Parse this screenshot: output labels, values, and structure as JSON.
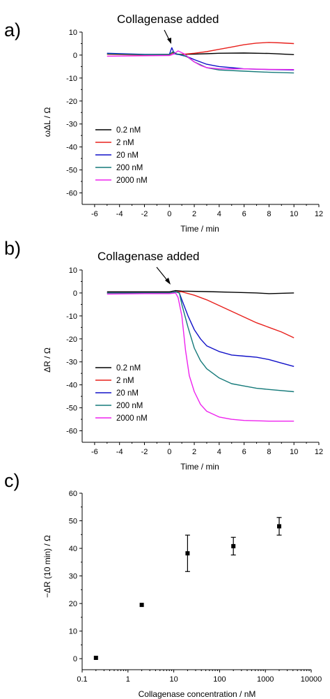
{
  "chart_data": [
    {
      "panel": "a)",
      "type": "line",
      "annotation": "Collagenase added",
      "annotation_x": 0,
      "ylabel": "ωΔL / Ω",
      "xlabel": "Time / min",
      "xlim": [
        -7,
        12
      ],
      "ylim": [
        -65,
        10
      ],
      "xticks": [
        -6,
        -4,
        -2,
        0,
        2,
        4,
        6,
        8,
        10,
        12
      ],
      "yticks": [
        10,
        0,
        -10,
        -20,
        -30,
        -40,
        -50,
        -60
      ],
      "legend_position": "bottom-left",
      "series": [
        {
          "name": "0.2 nM",
          "color": "#000000",
          "x": [
            -5,
            -2,
            0,
            0.3,
            0.6,
            1,
            2,
            3,
            4,
            6,
            8,
            10
          ],
          "y": [
            0.5,
            0.2,
            0.2,
            1.0,
            0.3,
            0.3,
            0.4,
            0.6,
            0.8,
            0.9,
            0.7,
            0.2
          ]
        },
        {
          "name": "2 nM",
          "color": "#e8201c",
          "x": [
            -5,
            -2,
            0,
            0.3,
            0.6,
            1,
            2,
            3,
            4,
            5,
            6,
            7,
            8,
            9,
            10
          ],
          "y": [
            0.3,
            0,
            0.1,
            1.2,
            0.4,
            0.3,
            0.8,
            1.5,
            2.5,
            3.5,
            4.5,
            5.2,
            5.5,
            5.3,
            5.0
          ]
        },
        {
          "name": "20 nM",
          "color": "#1010c8",
          "x": [
            -5,
            -2,
            0,
            0.2,
            0.4,
            0.8,
            1.5,
            2,
            3,
            4,
            5,
            6,
            8,
            10
          ],
          "y": [
            0.8,
            0.3,
            0.3,
            3.2,
            0.6,
            0.2,
            -0.8,
            -2,
            -4,
            -5,
            -5.5,
            -6,
            -6.3,
            -6.5
          ]
        },
        {
          "name": "200 nM",
          "color": "#157a7a",
          "x": [
            -5,
            -2,
            0,
            0.3,
            0.6,
            1,
            1.5,
            2,
            3,
            4,
            6,
            8,
            10
          ],
          "y": [
            0.5,
            0.2,
            0.3,
            1.5,
            0.5,
            0.2,
            -1,
            -3,
            -5.5,
            -6.5,
            -7,
            -7.5,
            -7.8
          ]
        },
        {
          "name": "2000 nM",
          "color": "#ee22ee",
          "x": [
            -5,
            -2,
            0,
            0.3,
            0.7,
            1.2,
            2,
            2.5,
            3,
            4,
            6,
            8,
            10
          ],
          "y": [
            -0.5,
            -0.3,
            -0.2,
            0.3,
            1.8,
            0.5,
            -3,
            -4.5,
            -5.5,
            -6,
            -6,
            -6.2,
            -6.3
          ]
        }
      ]
    },
    {
      "panel": "b)",
      "type": "line",
      "annotation": "Collagenase added",
      "annotation_x": 0,
      "ylabel": "ΔR / Ω",
      "xlabel": "Time / min",
      "xlim": [
        -7,
        12
      ],
      "ylim": [
        -65,
        10
      ],
      "xticks": [
        -6,
        -4,
        -2,
        0,
        2,
        4,
        6,
        8,
        10,
        12
      ],
      "yticks": [
        10,
        0,
        -10,
        -20,
        -30,
        -40,
        -50,
        -60
      ],
      "legend_position": "bottom-left",
      "series": [
        {
          "name": "0.2 nM",
          "color": "#000000",
          "x": [
            -5,
            -2,
            0,
            0.5,
            1,
            3,
            5,
            7,
            8,
            10
          ],
          "y": [
            0.5,
            0.5,
            0.5,
            1.0,
            0.8,
            0.6,
            0.3,
            0,
            -0.3,
            0
          ]
        },
        {
          "name": "2 nM",
          "color": "#e8201c",
          "x": [
            -5,
            -2,
            0,
            0.5,
            1,
            2,
            3,
            4,
            5,
            6,
            7,
            8,
            9,
            10
          ],
          "y": [
            0,
            0,
            0,
            0.5,
            0.5,
            -1,
            -3,
            -5.5,
            -8,
            -10.5,
            -13,
            -15,
            -17,
            -19.5
          ]
        },
        {
          "name": "20 nM",
          "color": "#1010c8",
          "x": [
            -5,
            -2,
            0,
            0.5,
            0.8,
            1,
            1.5,
            2,
            2.5,
            3,
            4,
            5,
            6,
            7,
            8,
            9,
            10
          ],
          "y": [
            0,
            0,
            0,
            0.5,
            0,
            -3,
            -10,
            -16,
            -20,
            -23,
            -25.5,
            -27,
            -27.5,
            -28,
            -29,
            -30.5,
            -32
          ]
        },
        {
          "name": "200 nM",
          "color": "#157a7a",
          "x": [
            -5,
            -2,
            0,
            0.5,
            0.8,
            1,
            1.5,
            2,
            2.5,
            3,
            4,
            5,
            6,
            7,
            8,
            10
          ],
          "y": [
            0,
            0,
            0,
            0.5,
            0,
            -5,
            -15,
            -24,
            -29.5,
            -33,
            -37,
            -39.5,
            -40.5,
            -41.5,
            -42,
            -43
          ]
        },
        {
          "name": "2000 nM",
          "color": "#ee22ee",
          "x": [
            -5,
            -2,
            0,
            0.5,
            0.7,
            1,
            1.3,
            1.6,
            2,
            2.5,
            3,
            4,
            5,
            6,
            8,
            10
          ],
          "y": [
            -0.5,
            -0.3,
            -0.3,
            0,
            -2,
            -10,
            -25,
            -36,
            -43,
            -48.5,
            -51.5,
            -54,
            -55,
            -55.5,
            -55.8,
            -55.8
          ]
        }
      ]
    },
    {
      "panel": "c)",
      "type": "scatter",
      "ylabel": "−ΔR (10 min) / Ω",
      "xlabel": "Collagenase concentration / nM",
      "x_scale": "log",
      "xlim": [
        0.1,
        10000
      ],
      "ylim": [
        -4,
        60
      ],
      "xticks": [
        0.1,
        1,
        10,
        100,
        1000,
        10000
      ],
      "xtick_labels": [
        "0.1",
        "1",
        "10",
        "100",
        "1000",
        "10000"
      ],
      "yticks": [
        0,
        10,
        20,
        30,
        40,
        50,
        60
      ],
      "points": [
        {
          "x": 0.2,
          "y": 0.3,
          "err": 0
        },
        {
          "x": 2,
          "y": 19.5,
          "err": 0
        },
        {
          "x": 20,
          "y": 38.2,
          "err": 6.6
        },
        {
          "x": 200,
          "y": 40.8,
          "err": 3.2
        },
        {
          "x": 2000,
          "y": 48.0,
          "err": 3.2
        }
      ]
    }
  ]
}
